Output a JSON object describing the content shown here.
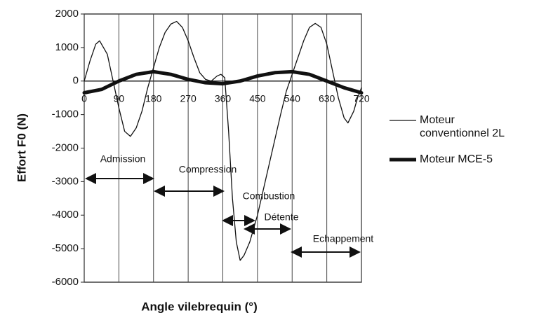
{
  "chart_data": {
    "type": "line",
    "xlabel": "Angle vilebrequin (°)",
    "ylabel": "Effort F0 (N)",
    "xlim": [
      0,
      720
    ],
    "xticks": [
      0,
      90,
      180,
      270,
      360,
      450,
      540,
      630,
      720
    ],
    "ylim": [
      -6000,
      2000
    ],
    "yticks": [
      -6000,
      -5000,
      -4000,
      -3000,
      -2000,
      -1000,
      0,
      1000,
      2000
    ],
    "grid": "x",
    "series": [
      {
        "name": "Moteur conventionnel 2L",
        "color": "#111111",
        "width": 1.3,
        "x": [
          0,
          15,
          30,
          40,
          60,
          75,
          90,
          105,
          120,
          135,
          150,
          165,
          180,
          195,
          210,
          225,
          240,
          255,
          270,
          285,
          300,
          315,
          330,
          345,
          355,
          365,
          375,
          385,
          395,
          405,
          415,
          430,
          450,
          470,
          490,
          510,
          525,
          540,
          555,
          570,
          585,
          600,
          615,
          630,
          645,
          660,
          675,
          685,
          700,
          710,
          720
        ],
        "values": [
          0,
          600,
          1100,
          1200,
          800,
          0,
          -800,
          -1500,
          -1650,
          -1400,
          -900,
          -200,
          400,
          1000,
          1450,
          1700,
          1780,
          1600,
          1200,
          700,
          250,
          50,
          0,
          150,
          200,
          100,
          -1500,
          -3500,
          -4800,
          -5350,
          -5200,
          -4800,
          -4000,
          -3000,
          -2000,
          -1000,
          -300,
          200,
          700,
          1200,
          1600,
          1720,
          1600,
          1100,
          300,
          -500,
          -1100,
          -1250,
          -900,
          -500,
          -200
        ]
      },
      {
        "name": "Moteur MCE-5",
        "color": "#111111",
        "width": 5,
        "x": [
          0,
          45,
          90,
          135,
          180,
          225,
          270,
          315,
          360,
          405,
          450,
          495,
          540,
          585,
          630,
          675,
          720
        ],
        "values": [
          -350,
          -250,
          0,
          200,
          280,
          200,
          50,
          -50,
          -80,
          0,
          150,
          250,
          280,
          200,
          0,
          -200,
          -350
        ]
      }
    ],
    "annotations": [
      "Admission",
      "Compression",
      "Combustion",
      "Détente",
      "Echappement"
    ]
  }
}
